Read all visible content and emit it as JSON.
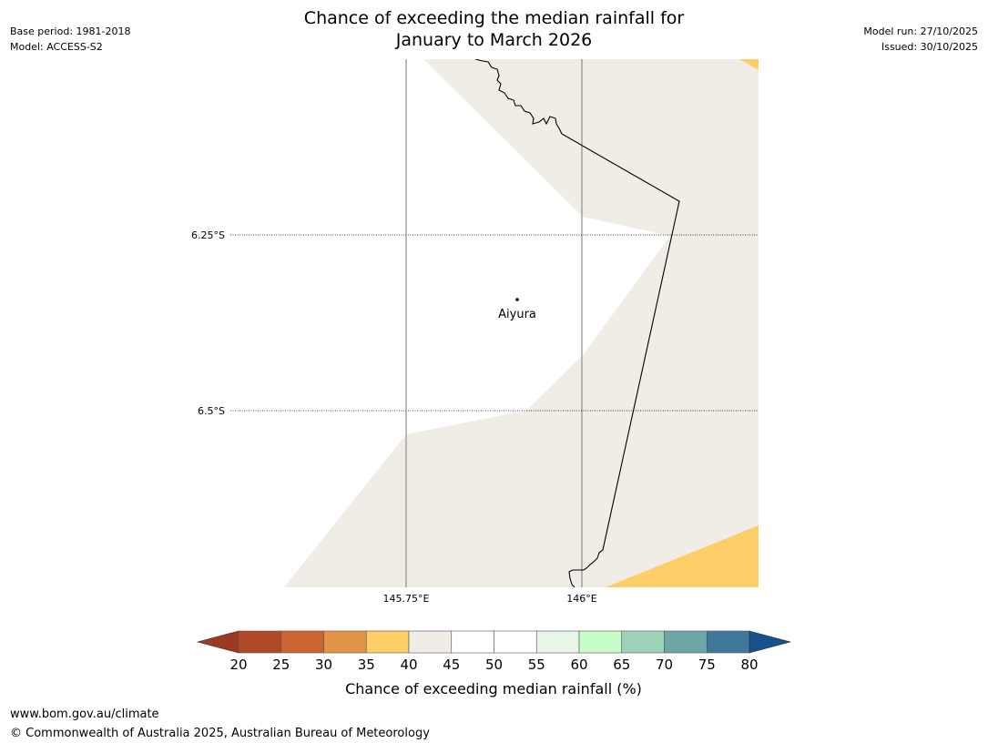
{
  "title": {
    "line1": "Chance of exceeding the median rainfall for",
    "line2": "January to March 2026"
  },
  "meta_left": {
    "base_period": "Base period: 1981-2018",
    "model": "Model: ACCESS-S2"
  },
  "meta_right": {
    "model_run": "Model run: 27/10/2025",
    "issued": "Issued: 30/10/2025"
  },
  "map": {
    "lat_labels": [
      "6.25°S",
      "6.5°S"
    ],
    "lon_labels": [
      "145.75°E",
      "146°E"
    ],
    "place": {
      "name": "Aiyura"
    },
    "region_colors": {
      "ocean_white": "#ffffff",
      "band_40_45": "#f0ece6",
      "band_35_40": "#fdcd67"
    }
  },
  "colorbar": {
    "label": "Chance of exceeding median rainfall (%)",
    "ticks": [
      "20",
      "25",
      "30",
      "35",
      "40",
      "45",
      "50",
      "55",
      "60",
      "65",
      "70",
      "75",
      "80"
    ],
    "under_color": "#9b3924",
    "over_color": "#17508d",
    "colors": [
      "#b04a26",
      "#cc6331",
      "#e29446",
      "#fdcd67",
      "#f0ece6",
      "#ffffff",
      "#ffffff",
      "#e8f6e8",
      "#c8fcc8",
      "#9ed2b9",
      "#6ea6a6",
      "#3f7898"
    ]
  },
  "footer": {
    "url": "www.bom.gov.au/climate",
    "copyright": "© Commonwealth of Australia 2025, Australian Bureau of Meteorology"
  }
}
